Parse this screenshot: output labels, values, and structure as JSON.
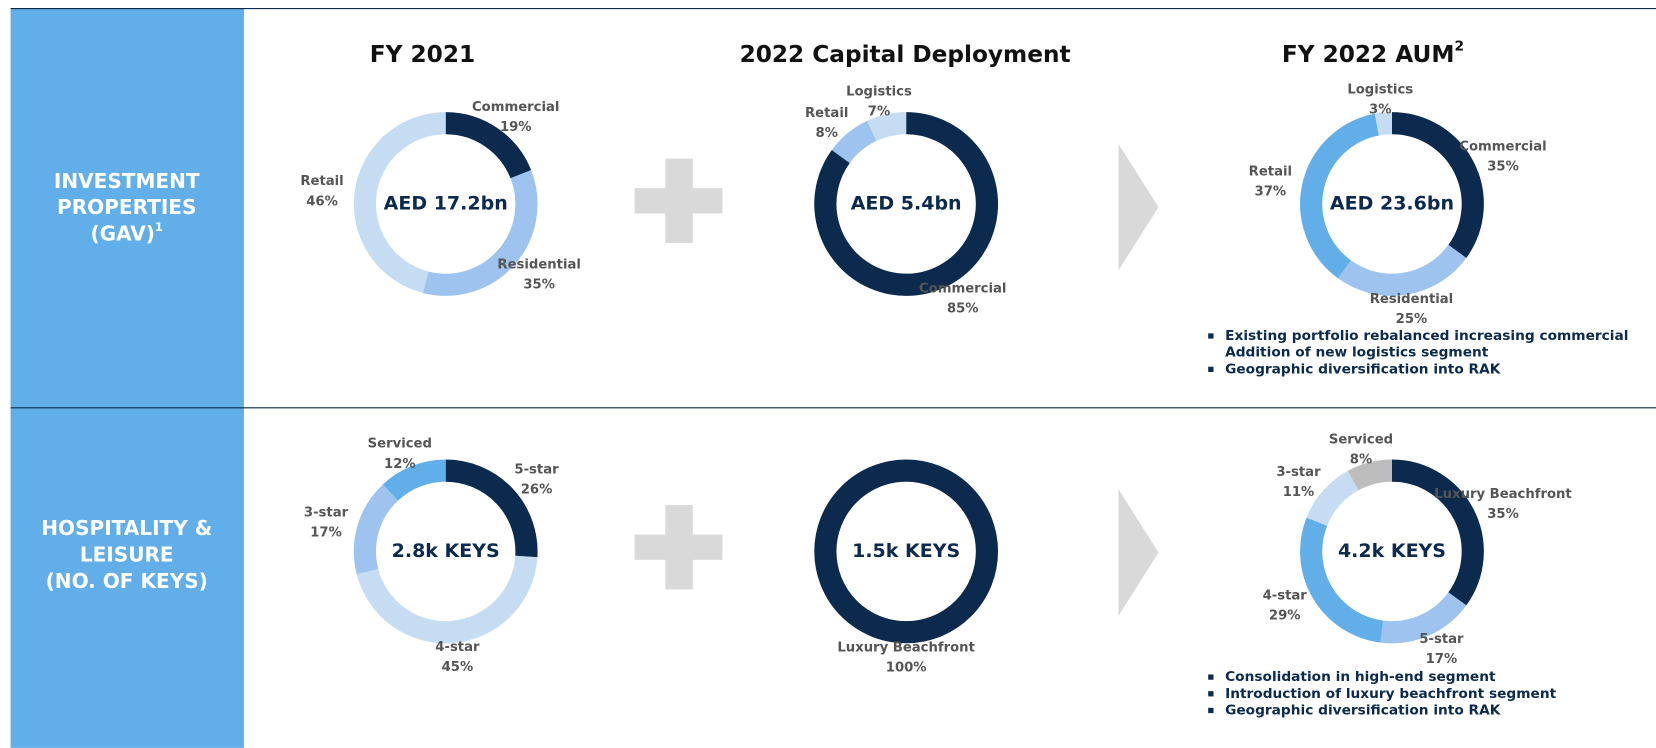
{
  "columns": [
    {
      "text": "FY 2021"
    },
    {
      "text": "2022 Capital Deployment"
    },
    {
      "text": "FY 2022 AUM",
      "sup": "2"
    }
  ],
  "rows": [
    {
      "label": [
        "INVESTMENT",
        "PROPERTIES",
        "(GAV)"
      ],
      "sup": "1",
      "bullets": [
        [
          "Existing portfolio rebalanced increasing commercial",
          "Addition of new logistics segment"
        ],
        [
          "Geographic diversification into RAK"
        ]
      ]
    },
    {
      "label": [
        "HOSPITALITY &",
        "LEISURE",
        "(NO. OF KEYS)"
      ],
      "bullets": [
        [
          "Consolidation in high-end segment"
        ],
        [
          "Introduction of luxury beachfront segment"
        ],
        [
          "Geographic diversification into RAK"
        ]
      ]
    }
  ],
  "chart_data": [
    {
      "type": "pie",
      "center_label": "AED 17.2bn",
      "categories": [
        "Commercial",
        "Residential",
        "Retail"
      ],
      "values": [
        19,
        35,
        46
      ],
      "value_labels": [
        "19%",
        "35%",
        "46%"
      ],
      "colors": [
        "#0b2a4e",
        "#9dc3ee",
        "#c5dcf3"
      ]
    },
    {
      "type": "pie",
      "center_label": "AED 5.4bn",
      "categories": [
        "Commercial",
        "Retail",
        "Logistics"
      ],
      "values": [
        85,
        8,
        7
      ],
      "value_labels": [
        "85%",
        "8%",
        "7%"
      ],
      "colors": [
        "#0b2a4e",
        "#9dc3ee",
        "#c5dcf3"
      ]
    },
    {
      "type": "pie",
      "center_label": "AED 23.6bn",
      "categories": [
        "Commercial",
        "Residential",
        "Retail",
        "Logistics"
      ],
      "values": [
        35,
        25,
        37,
        3
      ],
      "value_labels": [
        "35%",
        "25%",
        "37%",
        "3%"
      ],
      "colors": [
        "#0b2a4e",
        "#9dc3ee",
        "#62aee8",
        "#c5dcf3"
      ]
    },
    {
      "type": "pie",
      "center_label": "2.8k KEYS",
      "categories": [
        "5-star",
        "4-star",
        "3-star",
        "Serviced"
      ],
      "values": [
        26,
        45,
        17,
        12
      ],
      "value_labels": [
        "26%",
        "45%",
        "17%",
        "12%"
      ],
      "colors": [
        "#0b2a4e",
        "#c5dcf3",
        "#9dc3ee",
        "#62aee8"
      ]
    },
    {
      "type": "pie",
      "center_label": "1.5k KEYS",
      "categories": [
        "Luxury Beachfront"
      ],
      "values": [
        100
      ],
      "value_labels": [
        "100%"
      ],
      "colors": [
        "#0b2a4e"
      ]
    },
    {
      "type": "pie",
      "center_label": "4.2k KEYS",
      "categories": [
        "Luxury Beachfront",
        "5-star",
        "4-star",
        "3-star",
        "Serviced"
      ],
      "values": [
        35,
        17,
        29,
        11,
        8
      ],
      "value_labels": [
        "35%",
        "17%",
        "29%",
        "11%",
        "8%"
      ],
      "colors": [
        "#0b2a4e",
        "#9dc3ee",
        "#62aee8",
        "#c5dcf3",
        "#bdbdbd"
      ]
    }
  ]
}
